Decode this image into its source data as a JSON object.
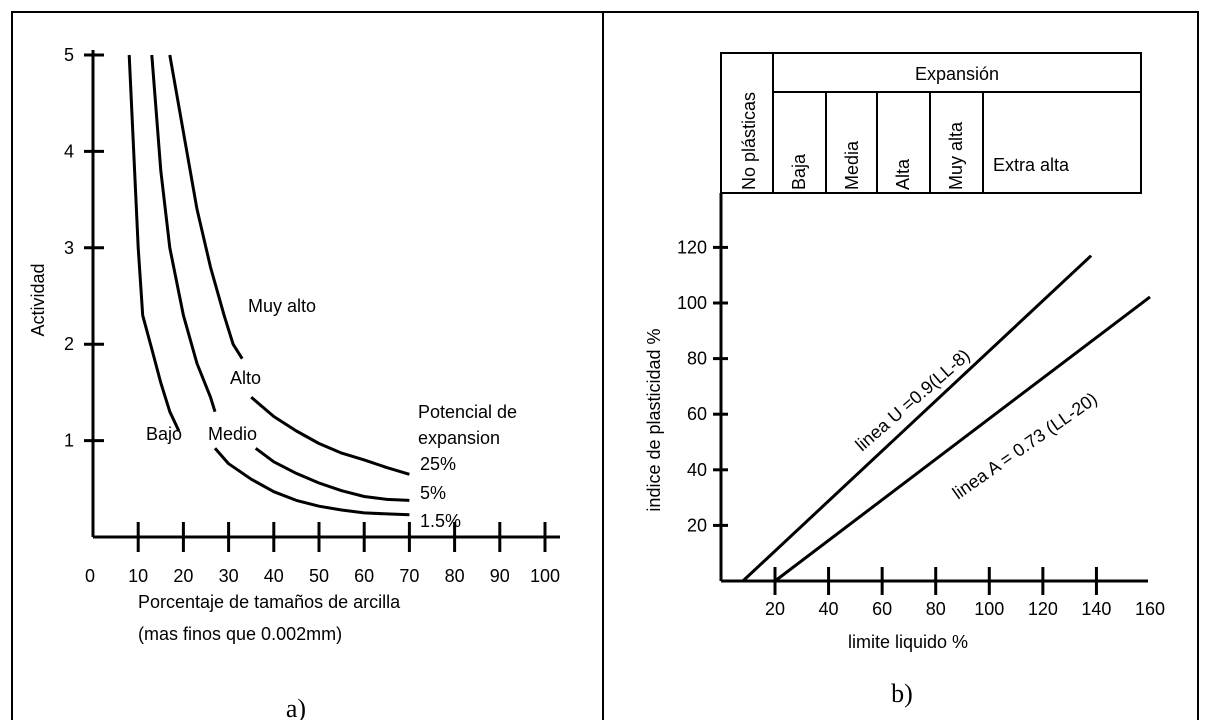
{
  "chart_data": [
    {
      "type": "line",
      "panel_label": "a)",
      "xlabel": "Porcentaje de tamaños de arcilla",
      "xlabel2": "(mas finos que 0.002mm)",
      "ylabel": "Actividad",
      "xlim": [
        0,
        100
      ],
      "ylim": [
        0,
        5
      ],
      "x_ticks": [
        0,
        10,
        20,
        30,
        40,
        50,
        60,
        70,
        80,
        90,
        100
      ],
      "y_ticks": [
        1,
        2,
        3,
        4,
        5
      ],
      "legend_title": "Potencial de expansion",
      "region_labels": [
        "Bajo",
        "Medio",
        "Alto",
        "Muy alto"
      ],
      "series": [
        {
          "name": "",
          "x": [
            8,
            9,
            10,
            11,
            13,
            15,
            17,
            19
          ],
          "y": [
            5.0,
            4.0,
            3.0,
            2.3,
            1.95,
            1.6,
            1.3,
            1.1
          ]
        },
        {
          "name": "",
          "x": [
            13,
            14,
            15,
            17,
            20,
            23,
            26,
            27
          ],
          "y": [
            5.0,
            4.4,
            3.8,
            3.0,
            2.3,
            1.8,
            1.45,
            1.3
          ]
        },
        {
          "name": "",
          "x": [
            17,
            20,
            23,
            26,
            29,
            31,
            33
          ],
          "y": [
            5.0,
            4.2,
            3.4,
            2.8,
            2.3,
            2.0,
            1.85
          ]
        },
        {
          "name": "25%",
          "x": [
            35,
            40,
            45,
            50,
            55,
            60,
            65,
            70
          ],
          "y": [
            1.45,
            1.25,
            1.1,
            0.97,
            0.87,
            0.8,
            0.72,
            0.65
          ]
        },
        {
          "name": "5%",
          "x": [
            36,
            40,
            45,
            50,
            55,
            60,
            65,
            70
          ],
          "y": [
            0.92,
            0.78,
            0.66,
            0.56,
            0.48,
            0.42,
            0.39,
            0.38
          ]
        },
        {
          "name": "1.5%",
          "x": [
            27,
            30,
            35,
            40,
            45,
            50,
            55,
            60,
            65,
            70
          ],
          "y": [
            0.92,
            0.76,
            0.6,
            0.47,
            0.38,
            0.32,
            0.28,
            0.25,
            0.24,
            0.23
          ]
        }
      ]
    },
    {
      "type": "line",
      "panel_label": "b)",
      "xlabel": "limite liquido %",
      "ylabel": "indice de plasticidad %",
      "xlim": [
        0,
        160
      ],
      "ylim": [
        0,
        140
      ],
      "x_ticks": [
        20,
        40,
        60,
        80,
        100,
        120,
        140,
        160
      ],
      "y_ticks": [
        20,
        40,
        60,
        80,
        100,
        120
      ],
      "header_top": "Expansión",
      "header_left": "No plásticas",
      "header_classes": [
        "Baja",
        "Media",
        "Alta",
        "Muy alta",
        "Extra alta"
      ],
      "series": [
        {
          "name": "linea U =0.9(LL-8)",
          "x": [
            8,
            138
          ],
          "y": [
            0,
            117
          ]
        },
        {
          "name": "linea A = 0.73 (LL-20)",
          "x": [
            20,
            160
          ],
          "y": [
            0,
            102.2
          ]
        }
      ]
    }
  ]
}
